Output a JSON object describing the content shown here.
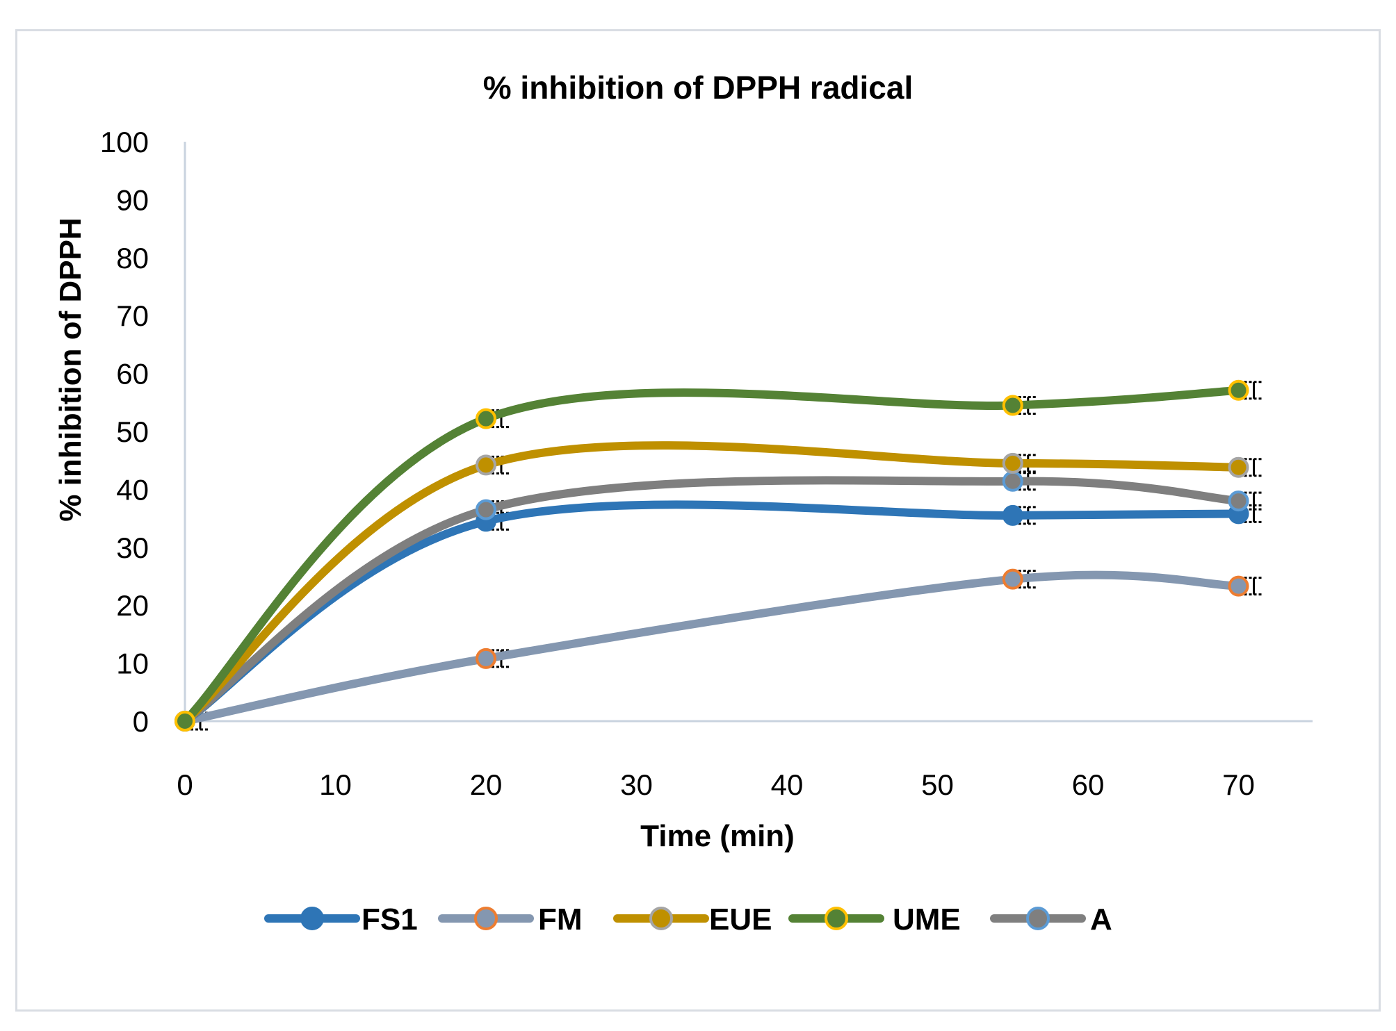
{
  "chart_data": {
    "type": "line",
    "title": "% inhibition of DPPH radical",
    "xlabel": "Time (min)",
    "ylabel": "% inhibition of DPPH",
    "xlim": [
      0,
      75
    ],
    "ylim": [
      0,
      100
    ],
    "xticks": [
      0,
      10,
      20,
      30,
      40,
      50,
      60,
      70
    ],
    "yticks": [
      0,
      10,
      20,
      30,
      40,
      50,
      60,
      70,
      80,
      90,
      100
    ],
    "x": [
      0,
      20,
      55,
      70
    ],
    "smooth": true,
    "error_bars": true,
    "legend_position": "bottom",
    "series": [
      {
        "name": "FS1",
        "values": [
          0,
          34.5,
          35.5,
          35.8
        ],
        "line_color": "#2e75b6",
        "marker_fill": "#2e75b6",
        "marker_edge": "#2e75b6"
      },
      {
        "name": "FM",
        "values": [
          0,
          10.8,
          24.5,
          23.3
        ],
        "line_color": "#8497b0",
        "marker_fill": "#8497b0",
        "marker_edge": "#ed7d31"
      },
      {
        "name": "EUE",
        "values": [
          0,
          44.2,
          44.5,
          43.8
        ],
        "line_color": "#bf9000",
        "marker_fill": "#bf9000",
        "marker_edge": "#a5a5a5"
      },
      {
        "name": "UME",
        "values": [
          0,
          52.2,
          54.5,
          57.1
        ],
        "line_color": "#548235",
        "marker_fill": "#548235",
        "marker_edge": "#ffc000"
      },
      {
        "name": "A",
        "values": [
          0,
          36.5,
          41.4,
          38.0
        ],
        "line_color": "#7f7f7f",
        "marker_fill": "#7f7f7f",
        "marker_edge": "#5b9bd5"
      }
    ]
  }
}
